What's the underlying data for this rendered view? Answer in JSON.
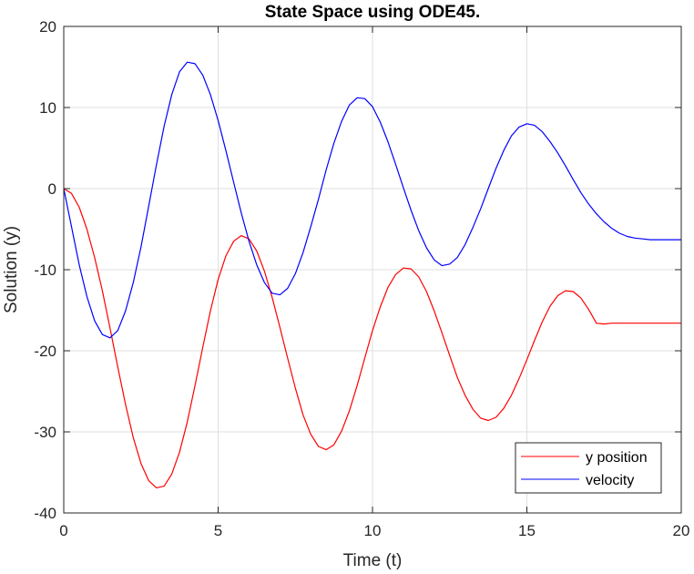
{
  "chart_data": {
    "type": "line",
    "title": "State Space using ODE45.",
    "xlabel": "Time (t)",
    "ylabel": "Solution (y)",
    "xlim": [
      0,
      20
    ],
    "ylim": [
      -40,
      20
    ],
    "xticks": [
      0,
      5,
      10,
      15,
      20
    ],
    "yticks": [
      -40,
      -30,
      -20,
      -10,
      0,
      10,
      20
    ],
    "xtick_labels": [
      "0",
      "5",
      "10",
      "15",
      "20"
    ],
    "ytick_labels": [
      "-40",
      "-30",
      "-20",
      "-10",
      "0",
      "10",
      "20"
    ],
    "grid": true,
    "legend_location": "bottom-right",
    "series": [
      {
        "name": "y position",
        "color": "#ff0000",
        "x": [
          0,
          0.25,
          0.5,
          0.75,
          1.0,
          1.25,
          1.5,
          1.75,
          2.0,
          2.25,
          2.5,
          2.75,
          3.0,
          3.25,
          3.5,
          3.75,
          4.0,
          4.25,
          4.5,
          4.75,
          5.0,
          5.25,
          5.5,
          5.75,
          6.0,
          6.25,
          6.5,
          6.75,
          7.0,
          7.25,
          7.5,
          7.75,
          8.0,
          8.25,
          8.5,
          8.75,
          9.0,
          9.25,
          9.5,
          9.75,
          10.0,
          10.25,
          10.5,
          10.75,
          11.0,
          11.25,
          11.5,
          11.75,
          12.0,
          12.25,
          12.5,
          12.75,
          13.0,
          13.25,
          13.5,
          13.75,
          14.0,
          14.25,
          14.5,
          14.75,
          15.0,
          15.25,
          15.5,
          15.75,
          16.0,
          16.25,
          16.5,
          16.75,
          17.0,
          17.25,
          17.5,
          17.75,
          18.0,
          18.25,
          18.5,
          18.75,
          19.0,
          19.25,
          19.5,
          19.75,
          20.0
        ],
        "y": [
          0,
          -0.6,
          -2.3,
          -5.0,
          -8.5,
          -12.6,
          -17.2,
          -22.0,
          -26.6,
          -30.7,
          -33.9,
          -36.0,
          -36.9,
          -36.7,
          -35.2,
          -32.5,
          -28.8,
          -24.3,
          -19.6,
          -15.1,
          -11.2,
          -8.3,
          -6.5,
          -5.8,
          -6.2,
          -7.7,
          -10.2,
          -13.4,
          -17.1,
          -20.9,
          -24.6,
          -27.9,
          -30.3,
          -31.8,
          -32.2,
          -31.6,
          -29.9,
          -27.4,
          -24.3,
          -20.9,
          -17.5,
          -14.6,
          -12.2,
          -10.6,
          -9.8,
          -9.9,
          -10.9,
          -12.7,
          -15.1,
          -17.8,
          -20.6,
          -23.3,
          -25.5,
          -27.2,
          -28.3,
          -28.6,
          -28.2,
          -27.1,
          -25.5,
          -23.4,
          -21.1,
          -18.7,
          -16.4,
          -14.5,
          -13.2,
          -12.6,
          -12.7,
          -13.5,
          -14.9,
          -16.6,
          -16.7,
          -16.6,
          -16.6,
          -16.6,
          -16.6,
          -16.6,
          -16.6,
          -16.6,
          -16.6,
          -16.6,
          -16.6
        ]
      },
      {
        "name": "velocity",
        "color": "#0000ff",
        "x": [
          0,
          0.25,
          0.5,
          0.75,
          1.0,
          1.25,
          1.5,
          1.75,
          2.0,
          2.25,
          2.5,
          2.75,
          3.0,
          3.25,
          3.5,
          3.75,
          4.0,
          4.25,
          4.5,
          4.75,
          5.0,
          5.25,
          5.5,
          5.75,
          6.0,
          6.25,
          6.5,
          6.75,
          7.0,
          7.25,
          7.5,
          7.75,
          8.0,
          8.25,
          8.5,
          8.75,
          9.0,
          9.25,
          9.5,
          9.75,
          10.0,
          10.25,
          10.5,
          10.75,
          11.0,
          11.25,
          11.5,
          11.75,
          12.0,
          12.25,
          12.5,
          12.75,
          13.0,
          13.25,
          13.5,
          13.75,
          14.0,
          14.25,
          14.5,
          14.75,
          15.0,
          15.25,
          15.5,
          15.75,
          16.0,
          16.25,
          16.5,
          16.75,
          17.0,
          17.25,
          17.5,
          17.75,
          18.0,
          18.25,
          18.5,
          18.75,
          19.0,
          19.25,
          19.5,
          19.75,
          20.0
        ],
        "y": [
          0,
          -4.7,
          -9.4,
          -13.3,
          -16.3,
          -18.0,
          -18.4,
          -17.5,
          -15.1,
          -11.6,
          -7.2,
          -2.2,
          2.9,
          7.7,
          11.6,
          14.4,
          15.6,
          15.4,
          14.0,
          11.6,
          8.4,
          4.7,
          0.8,
          -3.0,
          -6.5,
          -9.4,
          -11.6,
          -12.9,
          -13.1,
          -12.3,
          -10.5,
          -7.9,
          -4.7,
          -1.3,
          2.3,
          5.6,
          8.3,
          10.3,
          11.2,
          11.1,
          10.1,
          8.2,
          5.8,
          3.0,
          0.1,
          -2.7,
          -5.2,
          -7.3,
          -8.8,
          -9.5,
          -9.3,
          -8.5,
          -6.9,
          -4.8,
          -2.5,
          0.0,
          2.5,
          4.7,
          6.5,
          7.6,
          8.0,
          7.8,
          7.0,
          5.8,
          4.4,
          2.8,
          1.1,
          -0.5,
          -1.9,
          -3.1,
          -4.1,
          -4.9,
          -5.5,
          -5.9,
          -6.1,
          -6.2,
          -6.3,
          -6.3,
          -6.3,
          -6.3,
          -6.3
        ]
      }
    ]
  }
}
